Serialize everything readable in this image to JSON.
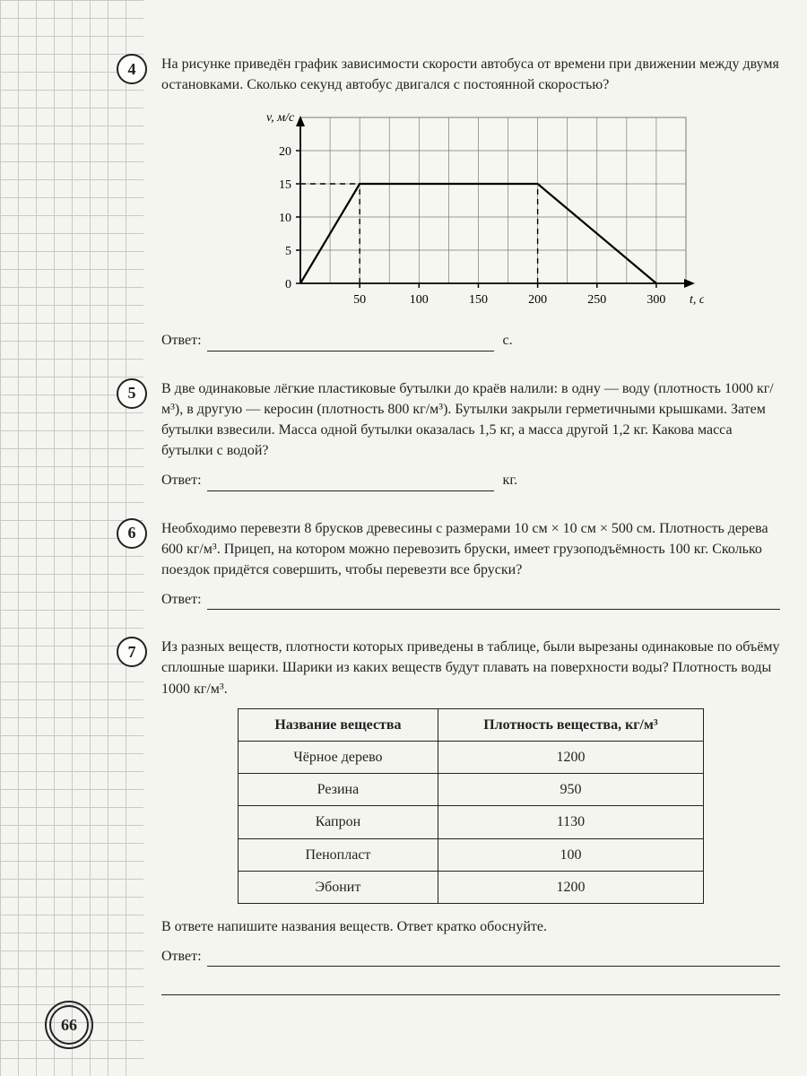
{
  "page_number": "66",
  "tasks": {
    "t4": {
      "num": "4",
      "text": "На рисунке приведён график зависимости скорости автобуса от времени при движении между двумя остановками. Сколько секунд автобус двигался с постоянной скоростью?",
      "answer_label": "Ответ:",
      "unit": "с."
    },
    "t5": {
      "num": "5",
      "text": "В две одинаковые лёгкие пластиковые бутылки до краёв налили: в одну — воду (плотность 1000 кг/м³), в другую — керосин (плотность 800 кг/м³). Бутылки закрыли герметичными крышками. Затем бутылки взвесили. Масса одной бутылки оказалась 1,5 кг, а масса другой 1,2 кг. Какова масса бутылки с водой?",
      "answer_label": "Ответ:",
      "unit": "кг."
    },
    "t6": {
      "num": "6",
      "text": "Необходимо перевезти 8 брусков древесины с размерами 10 см × 10 см × 500 см. Плотность дерева 600 кг/м³. Прицеп, на котором можно перевозить бруски, имеет грузоподъёмность 100 кг. Сколько поездок придётся совершить, чтобы перевезти все бруски?",
      "answer_label": "Ответ:"
    },
    "t7": {
      "num": "7",
      "text": "Из разных веществ, плотности которых приведены в таблице, были вырезаны одинаковые по объёму сплошные шарики. Шарики из каких веществ будут плавать на поверхности воды? Плотность воды 1000 кг/м³.",
      "note": "В ответе напишите названия веществ. Ответ кратко обоснуйте.",
      "answer_label": "Ответ:"
    }
  },
  "chart": {
    "y_label": "v, м/с",
    "x_label": "t, с",
    "x_ticks": [
      "50",
      "100",
      "150",
      "200",
      "250",
      "300"
    ],
    "y_ticks": [
      "0",
      "5",
      "10",
      "15",
      "20"
    ],
    "y_tick_vals": [
      0,
      5,
      10,
      15,
      20
    ],
    "x_tick_vals": [
      50,
      100,
      150,
      200,
      250,
      300
    ],
    "xlim": [
      0,
      325
    ],
    "ylim": [
      0,
      25
    ],
    "line_points": [
      [
        0,
        0
      ],
      [
        50,
        15
      ],
      [
        200,
        15
      ],
      [
        300,
        0
      ]
    ],
    "dashed_x": [
      50,
      200
    ],
    "line_color": "#000000",
    "grid_color": "#7a7a7a",
    "bg": "#f7f7f2",
    "font_size": 14
  },
  "table": {
    "headers": [
      "Название вещества",
      "Плотность вещества, кг/м³"
    ],
    "rows": [
      [
        "Чёрное дерево",
        "1200"
      ],
      [
        "Резина",
        "950"
      ],
      [
        "Капрон",
        "1130"
      ],
      [
        "Пенопласт",
        "100"
      ],
      [
        "Эбонит",
        "1200"
      ]
    ]
  }
}
